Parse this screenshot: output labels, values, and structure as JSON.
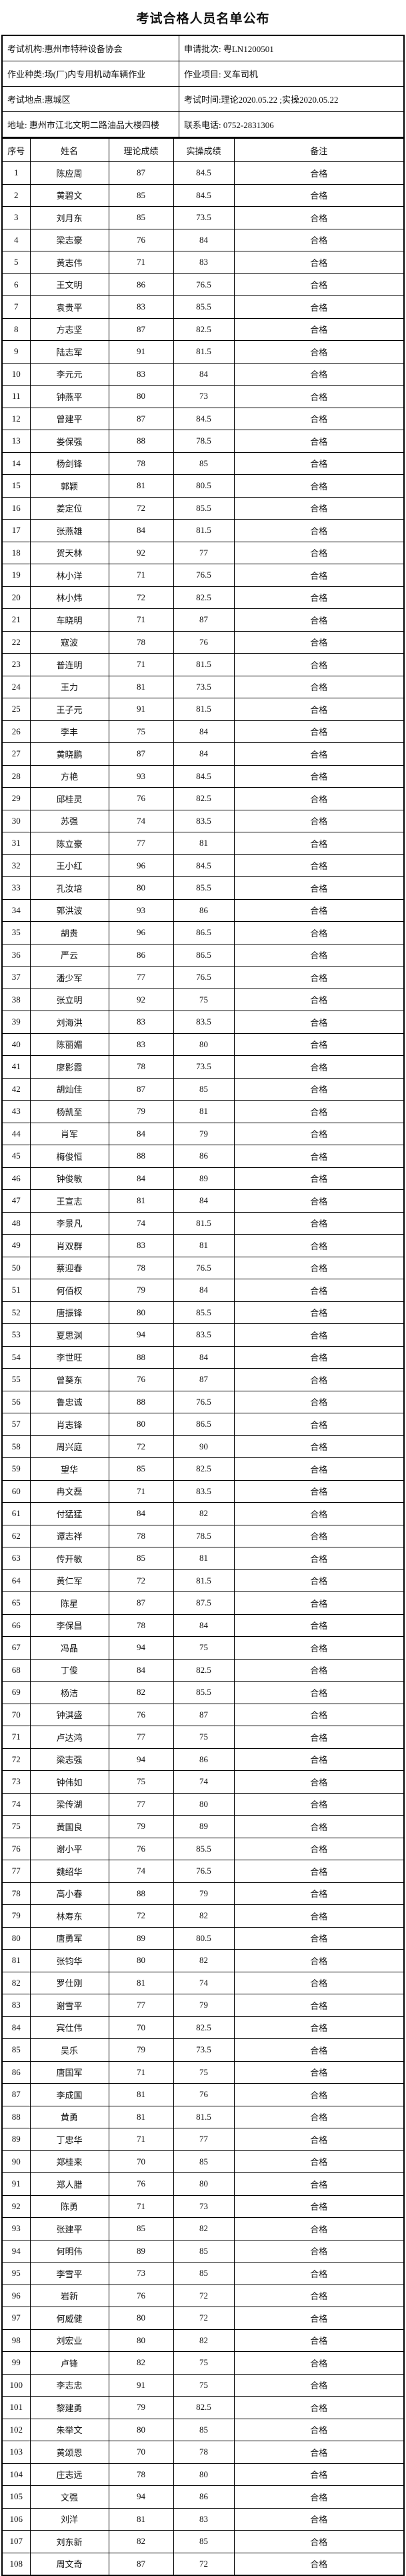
{
  "title": "考试合格人员名单公布",
  "info_rows": [
    {
      "left": "考试机构:惠州市特种设备协会",
      "right": "申请批次: 粤LN1200501"
    },
    {
      "left": "作业种类:场(厂)内专用机动车辆作业",
      "right": "作业项目: 叉车司机"
    },
    {
      "left": "考试地点:惠城区",
      "right": "考试时间:理论2020.05.22 ;实操2020.05.22"
    },
    {
      "left": "地址: 惠州市江北文明二路油品大楼四楼",
      "right": "联系电话: 0752-2831306"
    }
  ],
  "table": {
    "headers": [
      "序号",
      "姓名",
      "理论成绩",
      "实操成绩",
      "备注"
    ],
    "rows": [
      [
        "1",
        "陈应周",
        "87",
        "84.5",
        "合格"
      ],
      [
        "2",
        "黄碧文",
        "85",
        "84.5",
        "合格"
      ],
      [
        "3",
        "刘月东",
        "85",
        "73.5",
        "合格"
      ],
      [
        "4",
        "梁志豪",
        "76",
        "84",
        "合格"
      ],
      [
        "5",
        "黄志伟",
        "71",
        "83",
        "合格"
      ],
      [
        "6",
        "王文明",
        "86",
        "76.5",
        "合格"
      ],
      [
        "7",
        "袁贵平",
        "83",
        "85.5",
        "合格"
      ],
      [
        "8",
        "方志坚",
        "87",
        "82.5",
        "合格"
      ],
      [
        "9",
        "陆志军",
        "91",
        "81.5",
        "合格"
      ],
      [
        "10",
        "李元元",
        "83",
        "84",
        "合格"
      ],
      [
        "11",
        "钟燕平",
        "80",
        "73",
        "合格"
      ],
      [
        "12",
        "曾建平",
        "87",
        "84.5",
        "合格"
      ],
      [
        "13",
        "娄保强",
        "88",
        "78.5",
        "合格"
      ],
      [
        "14",
        "杨剑锋",
        "78",
        "85",
        "合格"
      ],
      [
        "15",
        "郭颖",
        "81",
        "80.5",
        "合格"
      ],
      [
        "16",
        "姜定位",
        "72",
        "85.5",
        "合格"
      ],
      [
        "17",
        "张燕雄",
        "84",
        "81.5",
        "合格"
      ],
      [
        "18",
        "贺天林",
        "92",
        "77",
        "合格"
      ],
      [
        "19",
        "林小洋",
        "71",
        "76.5",
        "合格"
      ],
      [
        "20",
        "林小炜",
        "72",
        "82.5",
        "合格"
      ],
      [
        "21",
        "车晓明",
        "71",
        "87",
        "合格"
      ],
      [
        "22",
        "寇波",
        "78",
        "76",
        "合格"
      ],
      [
        "23",
        "普连明",
        "71",
        "81.5",
        "合格"
      ],
      [
        "24",
        "王力",
        "81",
        "73.5",
        "合格"
      ],
      [
        "25",
        "王子元",
        "91",
        "81.5",
        "合格"
      ],
      [
        "26",
        "李丰",
        "75",
        "84",
        "合格"
      ],
      [
        "27",
        "黄晓鹏",
        "87",
        "84",
        "合格"
      ],
      [
        "28",
        "方艳",
        "93",
        "84.5",
        "合格"
      ],
      [
        "29",
        "邱桂灵",
        "76",
        "82.5",
        "合格"
      ],
      [
        "30",
        "苏强",
        "74",
        "83.5",
        "合格"
      ],
      [
        "31",
        "陈立豪",
        "77",
        "81",
        "合格"
      ],
      [
        "32",
        "王小红",
        "96",
        "84.5",
        "合格"
      ],
      [
        "33",
        "孔汝培",
        "80",
        "85.5",
        "合格"
      ],
      [
        "34",
        "郭洪波",
        "93",
        "86",
        "合格"
      ],
      [
        "35",
        "胡贵",
        "96",
        "86.5",
        "合格"
      ],
      [
        "36",
        "严云",
        "86",
        "86.5",
        "合格"
      ],
      [
        "37",
        "潘少军",
        "77",
        "76.5",
        "合格"
      ],
      [
        "38",
        "张立明",
        "92",
        "75",
        "合格"
      ],
      [
        "39",
        "刘海洪",
        "83",
        "83.5",
        "合格"
      ],
      [
        "40",
        "陈丽媚",
        "83",
        "80",
        "合格"
      ],
      [
        "41",
        "廖影霞",
        "78",
        "73.5",
        "合格"
      ],
      [
        "42",
        "胡灿佳",
        "87",
        "85",
        "合格"
      ],
      [
        "43",
        "杨凯至",
        "79",
        "81",
        "合格"
      ],
      [
        "44",
        "肖军",
        "84",
        "79",
        "合格"
      ],
      [
        "45",
        "梅俊恒",
        "88",
        "86",
        "合格"
      ],
      [
        "46",
        "钟俊敏",
        "84",
        "89",
        "合格"
      ],
      [
        "47",
        "王宣志",
        "81",
        "84",
        "合格"
      ],
      [
        "48",
        "李景凡",
        "74",
        "81.5",
        "合格"
      ],
      [
        "49",
        "肖双群",
        "83",
        "81",
        "合格"
      ],
      [
        "50",
        "蔡迎春",
        "78",
        "76.5",
        "合格"
      ],
      [
        "51",
        "何佰权",
        "79",
        "84",
        "合格"
      ],
      [
        "52",
        "唐振锋",
        "80",
        "85.5",
        "合格"
      ],
      [
        "53",
        "夏思渊",
        "94",
        "83.5",
        "合格"
      ],
      [
        "54",
        "李世旺",
        "88",
        "84",
        "合格"
      ],
      [
        "55",
        "曾葵东",
        "76",
        "87",
        "合格"
      ],
      [
        "56",
        "鲁忠诚",
        "88",
        "76.5",
        "合格"
      ],
      [
        "57",
        "肖志锋",
        "80",
        "86.5",
        "合格"
      ],
      [
        "58",
        "周兴庭",
        "72",
        "90",
        "合格"
      ],
      [
        "59",
        "望华",
        "85",
        "82.5",
        "合格"
      ],
      [
        "60",
        "冉文磊",
        "71",
        "83.5",
        "合格"
      ],
      [
        "61",
        "付猛猛",
        "84",
        "82",
        "合格"
      ],
      [
        "62",
        "谭志祥",
        "78",
        "78.5",
        "合格"
      ],
      [
        "63",
        "传开敏",
        "85",
        "81",
        "合格"
      ],
      [
        "64",
        "黄仁军",
        "72",
        "81.5",
        "合格"
      ],
      [
        "65",
        "陈星",
        "87",
        "87.5",
        "合格"
      ],
      [
        "66",
        "李保昌",
        "78",
        "84",
        "合格"
      ],
      [
        "67",
        "冯晶",
        "94",
        "75",
        "合格"
      ],
      [
        "68",
        "丁俊",
        "84",
        "82.5",
        "合格"
      ],
      [
        "69",
        "杨洁",
        "82",
        "85.5",
        "合格"
      ],
      [
        "70",
        "钟淇盛",
        "76",
        "87",
        "合格"
      ],
      [
        "71",
        "卢达鸿",
        "77",
        "75",
        "合格"
      ],
      [
        "72",
        "梁志强",
        "94",
        "86",
        "合格"
      ],
      [
        "73",
        "钟伟如",
        "75",
        "74",
        "合格"
      ],
      [
        "74",
        "梁传湖",
        "77",
        "80",
        "合格"
      ],
      [
        "75",
        "黄国良",
        "79",
        "89",
        "合格"
      ],
      [
        "76",
        "谢小平",
        "76",
        "85.5",
        "合格"
      ],
      [
        "77",
        "魏绍华",
        "74",
        "76.5",
        "合格"
      ],
      [
        "78",
        "高小春",
        "88",
        "79",
        "合格"
      ],
      [
        "79",
        "林寿东",
        "72",
        "82",
        "合格"
      ],
      [
        "80",
        "唐勇军",
        "89",
        "80.5",
        "合格"
      ],
      [
        "81",
        "张钧华",
        "80",
        "82",
        "合格"
      ],
      [
        "82",
        "罗仕刚",
        "81",
        "74",
        "合格"
      ],
      [
        "83",
        "谢雪平",
        "77",
        "79",
        "合格"
      ],
      [
        "84",
        "宾仕伟",
        "70",
        "82.5",
        "合格"
      ],
      [
        "85",
        "吴乐",
        "79",
        "73.5",
        "合格"
      ],
      [
        "86",
        "唐国军",
        "71",
        "75",
        "合格"
      ],
      [
        "87",
        "李成国",
        "81",
        "76",
        "合格"
      ],
      [
        "88",
        "黄勇",
        "81",
        "81.5",
        "合格"
      ],
      [
        "89",
        "丁忠华",
        "71",
        "77",
        "合格"
      ],
      [
        "90",
        "郑桂来",
        "70",
        "85",
        "合格"
      ],
      [
        "91",
        "郑人腊",
        "76",
        "80",
        "合格"
      ],
      [
        "92",
        "陈勇",
        "71",
        "73",
        "合格"
      ],
      [
        "93",
        "张建平",
        "85",
        "82",
        "合格"
      ],
      [
        "94",
        "何明伟",
        "89",
        "85",
        "合格"
      ],
      [
        "95",
        "李雪平",
        "73",
        "85",
        "合格"
      ],
      [
        "96",
        "岩新",
        "76",
        "72",
        "合格"
      ],
      [
        "97",
        "何威健",
        "80",
        "72",
        "合格"
      ],
      [
        "98",
        "刘宏业",
        "80",
        "82",
        "合格"
      ],
      [
        "99",
        "卢锋",
        "82",
        "75",
        "合格"
      ],
      [
        "100",
        "李志忠",
        "91",
        "75",
        "合格"
      ],
      [
        "101",
        "黎建勇",
        "79",
        "82.5",
        "合格"
      ],
      [
        "102",
        "朱举文",
        "80",
        "85",
        "合格"
      ],
      [
        "103",
        "黄颂恩",
        "70",
        "78",
        "合格"
      ],
      [
        "104",
        "庄志远",
        "78",
        "80",
        "合格"
      ],
      [
        "105",
        "文强",
        "94",
        "86",
        "合格"
      ],
      [
        "106",
        "刘洋",
        "81",
        "83",
        "合格"
      ],
      [
        "107",
        "刘东新",
        "82",
        "85",
        "合格"
      ],
      [
        "108",
        "周文奇",
        "87",
        "72",
        "合格"
      ]
    ]
  }
}
